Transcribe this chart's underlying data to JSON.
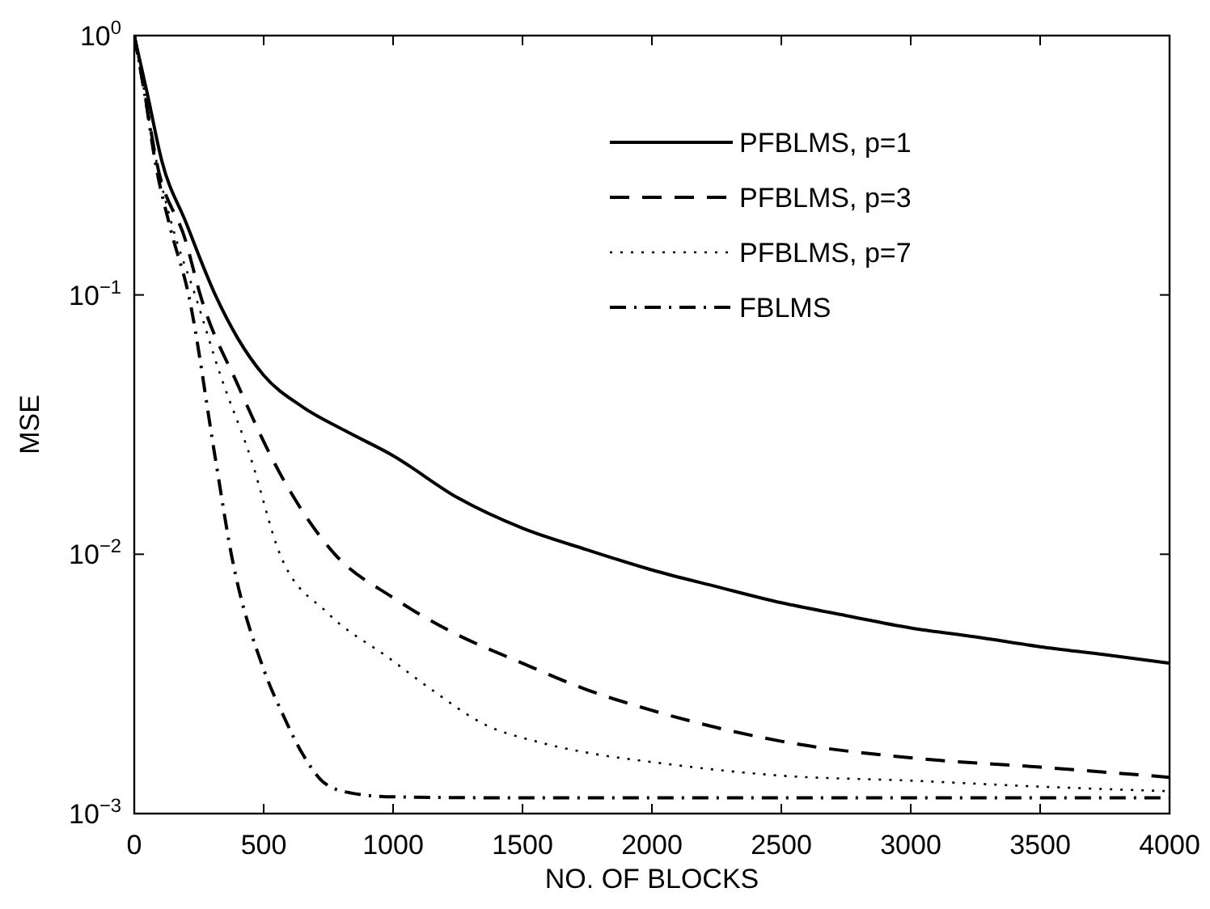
{
  "chart_data": {
    "type": "line",
    "xlabel": "NO. OF BLOCKS",
    "ylabel": "MSE",
    "log": "y",
    "xlim": [
      0,
      4000
    ],
    "ylim": [
      0.001,
      1
    ],
    "xticks": [
      0,
      500,
      1000,
      1500,
      2000,
      2500,
      3000,
      3500,
      4000
    ],
    "yticks": [
      {
        "value": 0.001,
        "label": "10$^{−3}$"
      },
      {
        "value": 0.01,
        "label": "10$^{−2}$"
      },
      {
        "value": 0.1,
        "label": "10$^{−1}$"
      },
      {
        "value": 1,
        "label": "10$^{0}$"
      }
    ],
    "legend": "top right",
    "grid": false,
    "series": [
      {
        "name": "PFBLMS, p=1",
        "color": "#000000",
        "line_style": "solid",
        "x": [
          0,
          50,
          106,
          200,
          313,
          400,
          500,
          650,
          813,
          1000,
          1250,
          1500,
          1750,
          2000,
          2250,
          2500,
          2750,
          3000,
          3250,
          3500,
          3750,
          4000
        ],
        "values": [
          1,
          0.6,
          0.33,
          0.19,
          0.1,
          0.068,
          0.049,
          0.037,
          0.03,
          0.024,
          0.0165,
          0.0126,
          0.0104,
          0.0087,
          0.0075,
          0.0065,
          0.0058,
          0.0052,
          0.0048,
          0.0044,
          0.0041,
          0.0038
        ]
      },
      {
        "name": "PFBLMS, p=3",
        "color": "#000000",
        "line_style": "dashed",
        "x": [
          0,
          40,
          85,
          200,
          255,
          400,
          563,
          775,
          1000,
          1213,
          1500,
          1750,
          2000,
          2500,
          3000,
          3500,
          4000
        ],
        "values": [
          1,
          0.6,
          0.33,
          0.16,
          0.1,
          0.045,
          0.0205,
          0.01,
          0.0068,
          0.0051,
          0.0038,
          0.003,
          0.0025,
          0.0019,
          0.00164,
          0.00151,
          0.00138
        ]
      },
      {
        "name": "PFBLMS, p=7",
        "color": "#000000",
        "line_style": "dotted",
        "x": [
          0,
          40,
          80,
          150,
          235,
          330,
          450,
          563,
          750,
          981,
          1150,
          1356,
          1550,
          1775,
          2000,
          2500,
          3000,
          3500,
          4000
        ],
        "values": [
          1,
          0.6,
          0.35,
          0.18,
          0.1,
          0.05,
          0.0235,
          0.01,
          0.0059,
          0.004,
          0.003,
          0.0022,
          0.0019,
          0.0017,
          0.00158,
          0.0014,
          0.00134,
          0.00127,
          0.00122
        ]
      },
      {
        "name": "FBLMS",
        "color": "#000000",
        "line_style": "dashdot",
        "x": [
          0,
          40,
          80,
          140,
          210,
          313,
          375,
          500,
          575,
          650,
          740,
          838,
          1000,
          1500,
          2000,
          2500,
          3000,
          3500,
          4000
        ],
        "values": [
          1,
          0.6,
          0.33,
          0.18,
          0.1,
          0.0235,
          0.01,
          0.0036,
          0.0024,
          0.0017,
          0.0013,
          0.0012,
          0.00116,
          0.00115,
          0.00115,
          0.00115,
          0.00115,
          0.00115,
          0.00115
        ]
      }
    ]
  }
}
